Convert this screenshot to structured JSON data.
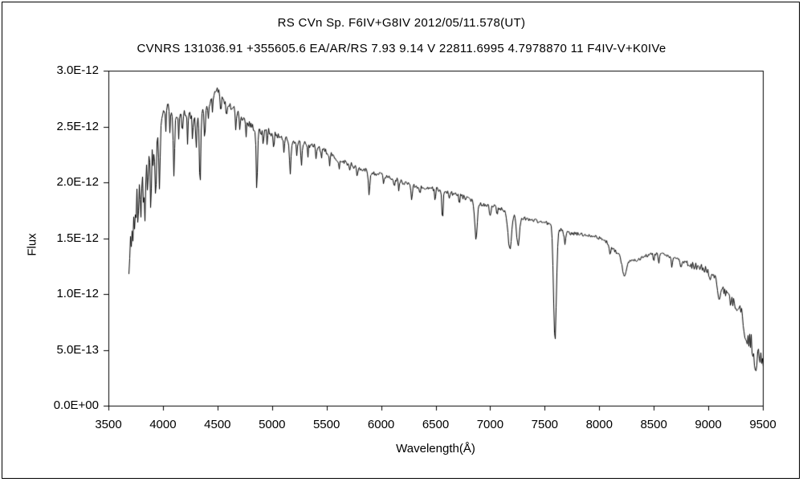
{
  "header": {
    "title1": "RS CVn    Sp. F6IV+G8IV    2012/05/11.578(UT)",
    "title2": "CVNRS 131036.91 +355605.6 EA/AR/RS 7.93 9.14 V 22811.6995 4.7978870 11 F4IV-V+K0IVe"
  },
  "chart_data": {
    "type": "line",
    "title": "RS CVn Sp. F6IV+G8IV 2012/05/11.578(UT)",
    "subtitle": "CVNRS 131036.91 +355605.6 EA/AR/RS 7.93 9.14 V 22811.6995 4.7978870 11 F4IV-V+K0IVe",
    "xlabel": "Wavelength(Å)",
    "ylabel": "Flux",
    "xlim": [
      3500,
      9500
    ],
    "ylim_label_min": "0.0E+00",
    "ylim_label_max": "3.0E-12",
    "flux_unit_scale": "1e-12",
    "ylim_units": [
      0,
      3.0
    ],
    "grid": false,
    "legend": "none",
    "line_color": "#000000",
    "background_color": "#ffffff",
    "x_ticks": [
      3500,
      4000,
      4500,
      5000,
      5500,
      6000,
      6500,
      7000,
      7500,
      8000,
      8500,
      9000,
      9500
    ],
    "y_ticks": [
      {
        "label": "0.0E+00",
        "value": 0.0
      },
      {
        "label": "5.0E-13",
        "value": 0.5
      },
      {
        "label": "1.0E-12",
        "value": 1.0
      },
      {
        "label": "1.5E-12",
        "value": 1.5
      },
      {
        "label": "2.0E-12",
        "value": 2.0
      },
      {
        "label": "2.5E-12",
        "value": 2.5
      },
      {
        "label": "3.0E-12",
        "value": 3.0
      }
    ],
    "wavelength_range": [
      3688,
      9508
    ],
    "continuum_points_note": "pairs of [wavelength_A, flux in units of 1e-12]",
    "continuum": [
      [
        3688,
        1.22
      ],
      [
        3700,
        1.45
      ],
      [
        3710,
        1.6
      ],
      [
        3720,
        1.72
      ],
      [
        3740,
        1.88
      ],
      [
        3760,
        1.98
      ],
      [
        3780,
        2.02
      ],
      [
        3800,
        2.05
      ],
      [
        3825,
        2.1
      ],
      [
        3850,
        2.18
      ],
      [
        3875,
        2.22
      ],
      [
        3900,
        2.3
      ],
      [
        3925,
        2.38
      ],
      [
        3950,
        2.42
      ],
      [
        3975,
        2.55
      ],
      [
        4000,
        2.63
      ],
      [
        4030,
        2.68
      ],
      [
        4060,
        2.66
      ],
      [
        4100,
        2.62
      ],
      [
        4150,
        2.6
      ],
      [
        4200,
        2.62
      ],
      [
        4250,
        2.6
      ],
      [
        4300,
        2.56
      ],
      [
        4350,
        2.6
      ],
      [
        4400,
        2.68
      ],
      [
        4450,
        2.76
      ],
      [
        4500,
        2.84
      ],
      [
        4540,
        2.76
      ],
      [
        4580,
        2.7
      ],
      [
        4620,
        2.68
      ],
      [
        4660,
        2.65
      ],
      [
        4700,
        2.6
      ],
      [
        4750,
        2.56
      ],
      [
        4800,
        2.52
      ],
      [
        4850,
        2.47
      ],
      [
        4900,
        2.45
      ],
      [
        4950,
        2.47
      ],
      [
        5000,
        2.44
      ],
      [
        5050,
        2.42
      ],
      [
        5100,
        2.4
      ],
      [
        5150,
        2.38
      ],
      [
        5200,
        2.36
      ],
      [
        5250,
        2.36
      ],
      [
        5300,
        2.35
      ],
      [
        5350,
        2.33
      ],
      [
        5400,
        2.32
      ],
      [
        5450,
        2.3
      ],
      [
        5500,
        2.27
      ],
      [
        5550,
        2.24
      ],
      [
        5600,
        2.21
      ],
      [
        5650,
        2.19
      ],
      [
        5700,
        2.17
      ],
      [
        5750,
        2.14
      ],
      [
        5800,
        2.12
      ],
      [
        5850,
        2.11
      ],
      [
        5900,
        2.09
      ],
      [
        5950,
        2.08
      ],
      [
        6000,
        2.07
      ],
      [
        6050,
        2.05
      ],
      [
        6100,
        2.04
      ],
      [
        6150,
        2.02
      ],
      [
        6200,
        2.0
      ],
      [
        6250,
        1.99
      ],
      [
        6300,
        1.97
      ],
      [
        6350,
        1.96
      ],
      [
        6400,
        1.95
      ],
      [
        6450,
        1.95
      ],
      [
        6500,
        1.94
      ],
      [
        6550,
        1.93
      ],
      [
        6600,
        1.92
      ],
      [
        6650,
        1.9
      ],
      [
        6700,
        1.89
      ],
      [
        6750,
        1.87
      ],
      [
        6800,
        1.85
      ],
      [
        6850,
        1.83
      ],
      [
        6900,
        1.81
      ],
      [
        6950,
        1.8
      ],
      [
        7000,
        1.79
      ],
      [
        7050,
        1.78
      ],
      [
        7100,
        1.76
      ],
      [
        7150,
        1.74
      ],
      [
        7200,
        1.72
      ],
      [
        7250,
        1.7
      ],
      [
        7300,
        1.68
      ],
      [
        7350,
        1.67
      ],
      [
        7400,
        1.66
      ],
      [
        7450,
        1.65
      ],
      [
        7500,
        1.64
      ],
      [
        7550,
        1.63
      ],
      [
        7600,
        1.6
      ],
      [
        7650,
        1.57
      ],
      [
        7700,
        1.55
      ],
      [
        7750,
        1.54
      ],
      [
        7800,
        1.54
      ],
      [
        7850,
        1.53
      ],
      [
        7900,
        1.53
      ],
      [
        7950,
        1.52
      ],
      [
        8000,
        1.5
      ],
      [
        8050,
        1.48
      ],
      [
        8100,
        1.44
      ],
      [
        8150,
        1.38
      ],
      [
        8200,
        1.33
      ],
      [
        8250,
        1.3
      ],
      [
        8300,
        1.3
      ],
      [
        8350,
        1.31
      ],
      [
        8400,
        1.33
      ],
      [
        8450,
        1.35
      ],
      [
        8500,
        1.36
      ],
      [
        8550,
        1.36
      ],
      [
        8600,
        1.35
      ],
      [
        8650,
        1.33
      ],
      [
        8700,
        1.32
      ],
      [
        8750,
        1.3
      ],
      [
        8800,
        1.28
      ],
      [
        8850,
        1.26
      ],
      [
        8900,
        1.25
      ],
      [
        8950,
        1.23
      ],
      [
        9000,
        1.2
      ],
      [
        9050,
        1.15
      ],
      [
        9100,
        1.08
      ],
      [
        9150,
        1.02
      ],
      [
        9200,
        0.95
      ],
      [
        9250,
        0.9
      ],
      [
        9300,
        0.82
      ],
      [
        9350,
        0.7
      ],
      [
        9400,
        0.55
      ],
      [
        9450,
        0.45
      ],
      [
        9500,
        0.42
      ],
      [
        9508,
        0.4
      ]
    ],
    "absorption_lines_note": "[center_A, depth in 1e-12, sigma_A]",
    "absorption_lines": [
      [
        3712,
        0.22,
        4
      ],
      [
        3726,
        0.28,
        4
      ],
      [
        3740,
        0.3,
        4
      ],
      [
        3752,
        0.32,
        4
      ],
      [
        3772,
        0.38,
        5
      ],
      [
        3798,
        0.4,
        5
      ],
      [
        3820,
        0.28,
        4
      ],
      [
        3835,
        0.45,
        5
      ],
      [
        3860,
        0.3,
        4
      ],
      [
        3889,
        0.5,
        5
      ],
      [
        3912,
        0.2,
        4
      ],
      [
        3933,
        0.55,
        6
      ],
      [
        3968,
        0.55,
        6
      ],
      [
        4026,
        0.22,
        4
      ],
      [
        4063,
        0.18,
        4
      ],
      [
        4101,
        0.55,
        6
      ],
      [
        4144,
        0.22,
        4
      ],
      [
        4178,
        0.15,
        4
      ],
      [
        4226,
        0.28,
        4
      ],
      [
        4271,
        0.22,
        4
      ],
      [
        4305,
        0.3,
        5
      ],
      [
        4340,
        0.62,
        6
      ],
      [
        4383,
        0.32,
        4
      ],
      [
        4415,
        0.18,
        4
      ],
      [
        4455,
        0.15,
        4
      ],
      [
        4531,
        0.16,
        4
      ],
      [
        4583,
        0.14,
        4
      ],
      [
        4668,
        0.2,
        4
      ],
      [
        4703,
        0.12,
        4
      ],
      [
        4762,
        0.12,
        4
      ],
      [
        4861,
        0.55,
        6
      ],
      [
        4920,
        0.16,
        4
      ],
      [
        4957,
        0.13,
        4
      ],
      [
        5016,
        0.16,
        4
      ],
      [
        5110,
        0.12,
        4
      ],
      [
        5167,
        0.3,
        7
      ],
      [
        5227,
        0.14,
        4
      ],
      [
        5270,
        0.22,
        6
      ],
      [
        5328,
        0.13,
        4
      ],
      [
        5405,
        0.13,
        4
      ],
      [
        5455,
        0.1,
        4
      ],
      [
        5528,
        0.11,
        4
      ],
      [
        5615,
        0.1,
        4
      ],
      [
        5711,
        0.08,
        4
      ],
      [
        5782,
        0.08,
        4
      ],
      [
        5890,
        0.22,
        6
      ],
      [
        6024,
        0.08,
        4
      ],
      [
        6122,
        0.1,
        4
      ],
      [
        6162,
        0.1,
        4
      ],
      [
        6280,
        0.13,
        6
      ],
      [
        6358,
        0.08,
        4
      ],
      [
        6495,
        0.12,
        4
      ],
      [
        6563,
        0.28,
        6
      ],
      [
        6623,
        0.08,
        4
      ],
      [
        6717,
        0.1,
        4
      ],
      [
        6870,
        0.32,
        11
      ],
      [
        7000,
        0.1,
        6
      ],
      [
        7065,
        0.08,
        5
      ],
      [
        7180,
        0.33,
        16
      ],
      [
        7255,
        0.26,
        13
      ],
      [
        7594,
        1.02,
        13
      ],
      [
        7685,
        0.1,
        7
      ],
      [
        8100,
        0.1,
        7
      ],
      [
        8230,
        0.14,
        18
      ],
      [
        8500,
        0.08,
        5
      ],
      [
        8545,
        0.1,
        5
      ],
      [
        8665,
        0.1,
        5
      ],
      [
        8750,
        0.07,
        5
      ],
      [
        9015,
        0.08,
        6
      ],
      [
        9100,
        0.16,
        10
      ],
      [
        9345,
        0.12,
        18
      ],
      [
        9430,
        0.12,
        12
      ]
    ],
    "noise_regions_note": "[start_A, end_A, amplitude in 1e-12]",
    "noise_regions": [
      [
        3688,
        3800,
        0.065
      ],
      [
        3800,
        4000,
        0.05
      ],
      [
        4000,
        4400,
        0.038
      ],
      [
        4400,
        5000,
        0.032
      ],
      [
        5000,
        5800,
        0.025
      ],
      [
        5800,
        6800,
        0.02
      ],
      [
        6800,
        7550,
        0.018
      ],
      [
        7550,
        7650,
        0.02
      ],
      [
        7650,
        8800,
        0.016
      ],
      [
        8800,
        9200,
        0.035
      ],
      [
        9200,
        9510,
        0.075
      ]
    ],
    "noise_seed": 1337
  }
}
